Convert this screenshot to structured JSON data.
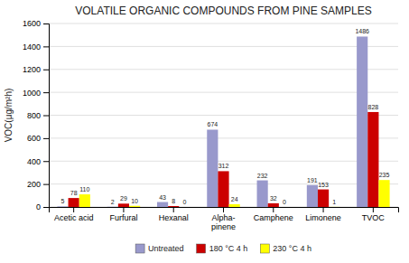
{
  "chart_data": {
    "type": "bar",
    "title": "VOLATILE ORGANIC COMPOUNDS FROM PINE SAMPLES",
    "ylabel": "VOC(μg/m²h)",
    "categories": [
      "Acetic acid",
      "Furfural",
      "Hexanal",
      "Alpha-\npinene",
      "Camphene",
      "Limonene",
      "TVOC"
    ],
    "series": [
      {
        "name": "Untreated",
        "color": "#9999cc",
        "values": [
          5,
          2,
          43,
          674,
          232,
          191,
          1486
        ]
      },
      {
        "name": "180 °C 4 h",
        "color": "#cc0000",
        "values": [
          78,
          29,
          8,
          312,
          32,
          153,
          828
        ]
      },
      {
        "name": "230 °C 4 h",
        "color": "#ffff00",
        "values": [
          110,
          10,
          0,
          24,
          0,
          1,
          235
        ]
      }
    ],
    "ylim": [
      0,
      1600
    ],
    "yticks": [
      0,
      200,
      400,
      600,
      800,
      1000,
      1200,
      1400,
      1600
    ],
    "grid": true,
    "data_labels": true,
    "legend": "bottom"
  }
}
